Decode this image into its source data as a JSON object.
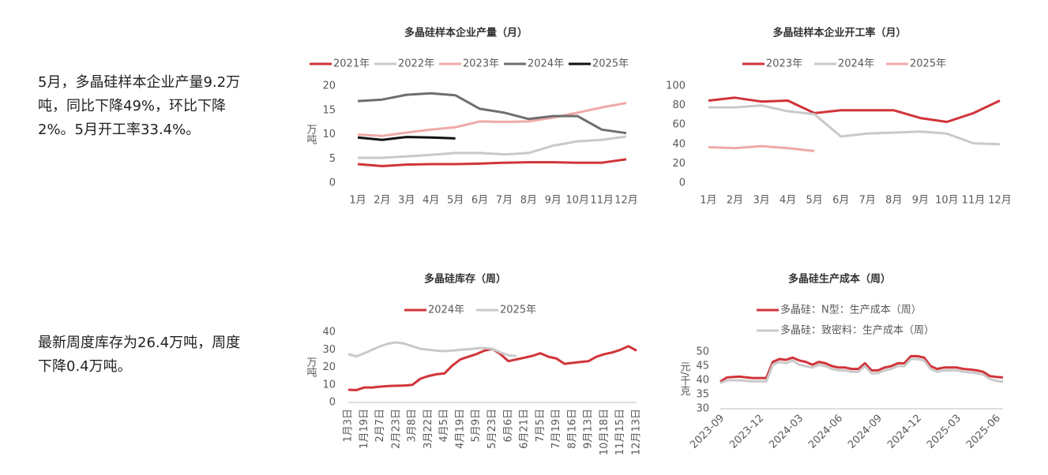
{
  "texts": [
    "5月，多晶硅样本企业产量9.2万吨，同比下降49%，环比下降2%。5月开工率33.4%。",
    "最新周度库存为26.4万吨，周度下降0.4万吨。"
  ],
  "chart_data": [
    {
      "type": "line",
      "title": "多晶硅样本企业产量（月）",
      "y_label": "万吨",
      "legend": "top",
      "categories": [
        "1月",
        "2月",
        "3月",
        "4月",
        "5月",
        "6月",
        "7月",
        "8月",
        "9月",
        "10月",
        "11月",
        "12月"
      ],
      "ylim": [
        0,
        20
      ],
      "yticks": [
        0,
        5,
        10,
        15,
        20
      ],
      "series": [
        {
          "name": "2021年",
          "color": "#d0343a",
          "values": [
            3.9,
            3.5,
            3.8,
            3.9,
            3.9,
            4.0,
            4.2,
            4.3,
            4.3,
            4.2,
            4.2,
            4.9
          ]
        },
        {
          "name": "2022年",
          "color": "#c9c9c9",
          "values": [
            5.2,
            5.2,
            5.5,
            5.8,
            6.2,
            6.2,
            5.9,
            6.2,
            7.7,
            8.6,
            8.9,
            9.6
          ]
        },
        {
          "name": "2023年",
          "color": "#f0a9a9",
          "values": [
            10.0,
            9.7,
            10.4,
            11.0,
            11.5,
            12.7,
            12.6,
            12.7,
            13.5,
            14.5,
            15.6,
            16.5
          ]
        },
        {
          "name": "2024年",
          "color": "#6e6e6e",
          "values": [
            16.9,
            17.2,
            18.2,
            18.5,
            18.1,
            15.3,
            14.5,
            13.2,
            13.8,
            13.8,
            11.0,
            10.3
          ]
        },
        {
          "name": "2025年",
          "color": "#111111",
          "values": [
            9.4,
            8.9,
            9.5,
            9.4,
            9.2,
            null,
            null,
            null,
            null,
            null,
            null,
            null
          ]
        }
      ]
    },
    {
      "type": "line",
      "title": "多晶硅样本企业开工率（月）",
      "legend": "top",
      "categories": [
        "1月",
        "2月",
        "3月",
        "4月",
        "5月",
        "6月",
        "7月",
        "8月",
        "9月",
        "10月",
        "11月",
        "12月"
      ],
      "ylim": [
        0,
        100
      ],
      "yticks": [
        0,
        20,
        40,
        60,
        80,
        100
      ],
      "series": [
        {
          "name": "2023年",
          "color": "#d0343a",
          "values": [
            85,
            88,
            84,
            85,
            72,
            75,
            75,
            75,
            67,
            63,
            72,
            85
          ]
        },
        {
          "name": "2024年",
          "color": "#c9c9c9",
          "values": [
            78,
            78,
            80,
            74,
            71,
            48,
            51,
            52,
            53,
            51,
            41,
            40
          ]
        },
        {
          "name": "2025年",
          "color": "#f0a9a9",
          "values": [
            37,
            36,
            38,
            36,
            33,
            null,
            null,
            null,
            null,
            null,
            null,
            null
          ]
        }
      ]
    },
    {
      "type": "line",
      "title": "多晶硅库存（周）",
      "y_label": "万吨",
      "legend": "top",
      "categories": [
        "1月3日",
        null,
        "1月19日",
        null,
        "2月7日",
        null,
        "2月23日",
        null,
        "3月8日",
        null,
        "3月22日",
        null,
        "4月5日",
        null,
        "4月19日",
        null,
        "5月9日",
        null,
        "5月23日",
        null,
        "6月6日",
        null,
        "6月21日",
        null,
        "7月5日",
        null,
        "7月19日",
        null,
        "8月16日",
        null,
        "9月13日",
        null,
        "10月18日",
        null,
        "11月15日",
        null,
        "12月13日"
      ],
      "ylim": [
        0,
        40
      ],
      "yticks": [
        0,
        10,
        20,
        30,
        40
      ],
      "series": [
        {
          "name": "2024年",
          "color": "#d0343a",
          "values": [
            7.2,
            7.0,
            8.5,
            8.5,
            9.0,
            9.3,
            9.5,
            9.6,
            10.0,
            13.5,
            15.0,
            16.0,
            16.5,
            21.0,
            24.5,
            26.0,
            27.5,
            29.5,
            30.5,
            27.5,
            23.5,
            24.5,
            25.5,
            26.5,
            28.0,
            26.0,
            25.0,
            22.0,
            22.5,
            23.0,
            23.5,
            26.0,
            27.5,
            28.5,
            30.0,
            32.0,
            29.5
          ]
        },
        {
          "name": "2025年",
          "color": "#c9c9c9",
          "values": [
            27.5,
            26.2,
            28.0,
            30.0,
            32.0,
            33.5,
            34.2,
            33.5,
            32.0,
            30.5,
            30.0,
            29.5,
            29.2,
            29.5,
            30.0,
            30.3,
            30.8,
            31.0,
            30.5,
            28.5,
            26.8,
            26.4,
            null,
            null,
            null,
            null,
            null,
            null,
            null,
            null,
            null,
            null,
            null,
            null,
            null,
            null,
            null
          ]
        }
      ]
    },
    {
      "type": "line",
      "title": "多晶硅生产成本（周）",
      "y_label": "元/千克",
      "legend": "top",
      "categories": [
        "2023-09",
        null,
        null,
        null,
        null,
        null,
        "2023-12",
        null,
        null,
        null,
        null,
        null,
        "2024-03",
        null,
        null,
        null,
        null,
        null,
        "2024-06",
        null,
        null,
        null,
        null,
        null,
        "2024-09",
        null,
        null,
        null,
        null,
        null,
        "2024-12",
        null,
        null,
        null,
        null,
        null,
        "2025-03",
        null,
        null,
        null,
        null,
        null,
        "2025-06",
        null
      ],
      "ylim": [
        30,
        50
      ],
      "yticks": [
        30,
        35,
        40,
        45,
        50
      ],
      "series": [
        {
          "name": "多晶硅：N型：生产成本（周）",
          "color": "#d0343a",
          "values": [
            39.5,
            41,
            41.2,
            41.3,
            41,
            40.8,
            40.8,
            40.8,
            46.5,
            47.5,
            47.2,
            48,
            47,
            46.5,
            45.5,
            46.5,
            46,
            45,
            44.5,
            44.5,
            44,
            44,
            46,
            43.5,
            43.5,
            44.5,
            45,
            46,
            46,
            48.5,
            48.5,
            48,
            45,
            44,
            44.5,
            44.5,
            44.5,
            44,
            43.8,
            43.5,
            43,
            41.5,
            41.2,
            41
          ]
        },
        {
          "name": "多晶硅：致密料：生产成本（周）",
          "color": "#c9c9c9",
          "values": [
            39,
            40,
            40,
            40,
            39.8,
            39.6,
            39.6,
            39.6,
            45.5,
            46.5,
            46,
            47,
            45.5,
            45,
            44.5,
            45.5,
            45,
            44,
            43.5,
            43.5,
            43,
            43,
            45,
            42.5,
            42.5,
            43.5,
            44,
            45,
            45,
            47.5,
            47.5,
            47,
            44,
            43,
            43.5,
            43.5,
            43.5,
            43,
            42.8,
            42.5,
            42,
            40.5,
            39.8,
            39.5
          ]
        }
      ]
    }
  ]
}
